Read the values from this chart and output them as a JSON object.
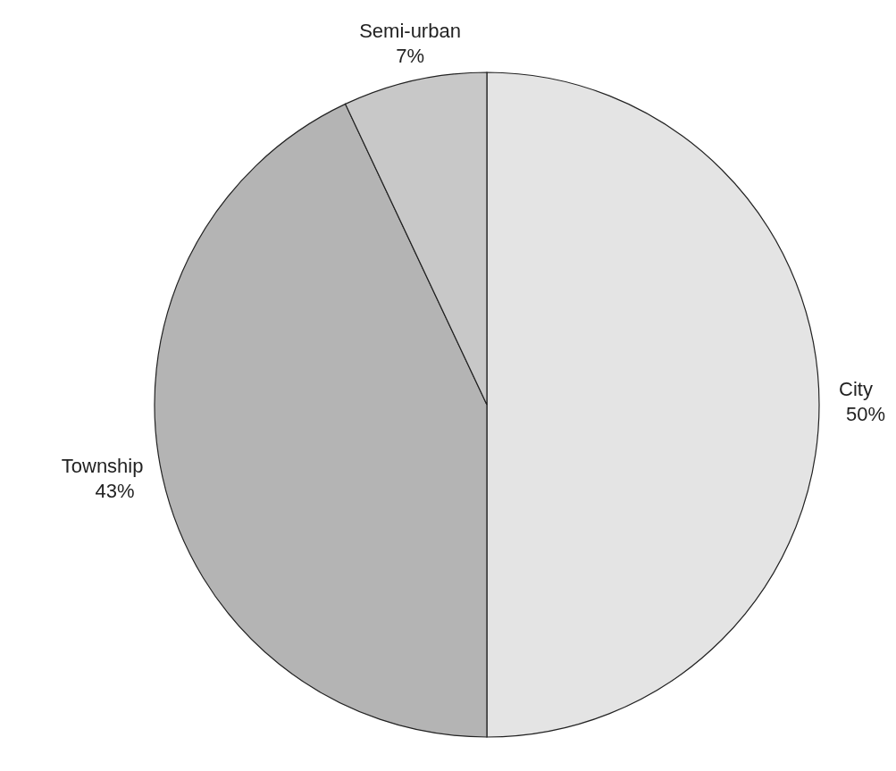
{
  "chart_data": {
    "type": "pie",
    "categories": [
      "City",
      "Township",
      "Semi-urban"
    ],
    "values": [
      50,
      43,
      7
    ],
    "colors": [
      "#e4e4e4",
      "#b4b4b4",
      "#c8c8c8"
    ],
    "value_labels": [
      "50%",
      "43%",
      "7%"
    ]
  }
}
